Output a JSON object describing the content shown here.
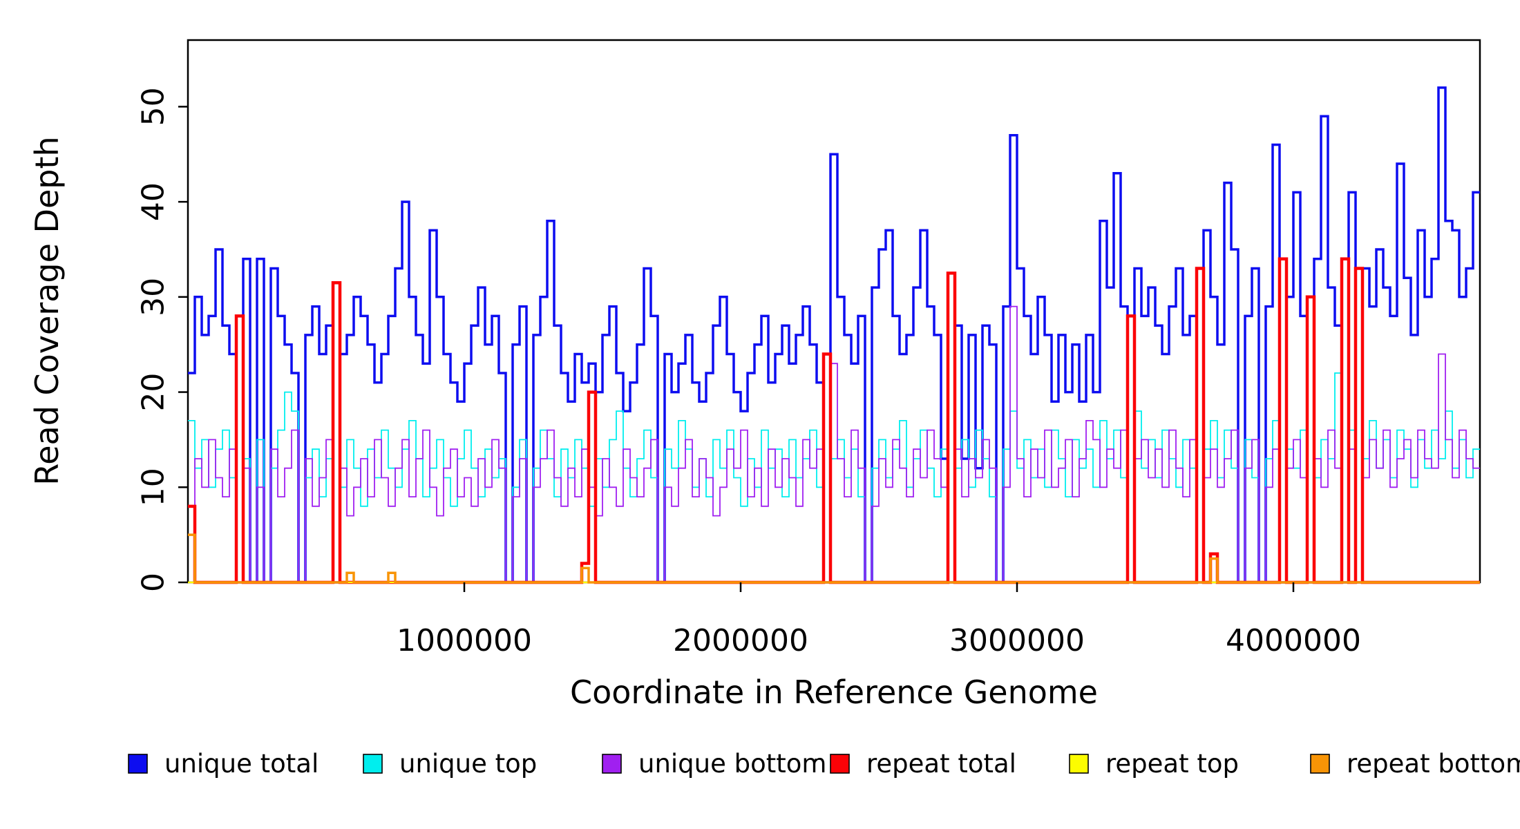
{
  "figure": {
    "y_axis": {
      "title": "Read Coverage Depth",
      "tick_labels": [
        "0",
        "10",
        "20",
        "30",
        "40",
        "50"
      ],
      "tick_values": [
        0,
        10,
        20,
        30,
        40,
        50
      ]
    },
    "x_axis": {
      "title": "Coordinate in Reference Genome",
      "tick_labels": [
        "1000000",
        "2000000",
        "3000000",
        "4000000"
      ],
      "tick_values": [
        1000000,
        2000000,
        3000000,
        4000000
      ]
    },
    "legend": [
      {
        "label": "unique total",
        "color": "#0d0df0"
      },
      {
        "label": "unique top",
        "color": "#00eeee"
      },
      {
        "label": "unique bottom",
        "color": "#a020f0"
      },
      {
        "label": "repeat total",
        "color": "#fb0207"
      },
      {
        "label": "repeat top",
        "color": "#fcfc00"
      },
      {
        "label": "repeat bottom",
        "color": "#f89406"
      }
    ],
    "stray_mark": "."
  },
  "chart_data": {
    "type": "line",
    "step_mode": "steps-post",
    "title": "",
    "xlabel": "Coordinate in Reference Genome",
    "ylabel": "Read Coverage Depth",
    "xlim": [
      0,
      4675000
    ],
    "ylim": [
      0,
      57
    ],
    "x_ticks": [
      1000000,
      2000000,
      3000000,
      4000000
    ],
    "y_ticks": [
      0,
      10,
      20,
      30,
      40,
      50
    ],
    "grid": false,
    "legend_position": "bottom",
    "x_start": 0,
    "x_step": 25000,
    "n_points": 187,
    "series": [
      {
        "name": "unique total",
        "color": "#0d0df0",
        "width": 3.5,
        "values": [
          22,
          30,
          26,
          28,
          35,
          27,
          24,
          0,
          34,
          0,
          34,
          0,
          33,
          28,
          25,
          22,
          0,
          26,
          29,
          24,
          27,
          0,
          24,
          26,
          30,
          28,
          25,
          21,
          24,
          28,
          33,
          40,
          30,
          26,
          23,
          37,
          30,
          24,
          21,
          19,
          23,
          27,
          31,
          25,
          28,
          22,
          0,
          25,
          29,
          0,
          26,
          30,
          38,
          27,
          22,
          19,
          24,
          21,
          23,
          20,
          26,
          29,
          22,
          18,
          21,
          25,
          33,
          28,
          0,
          24,
          20,
          23,
          26,
          21,
          19,
          22,
          27,
          30,
          24,
          20,
          18,
          22,
          25,
          28,
          21,
          24,
          27,
          23,
          26,
          29,
          25,
          21,
          0,
          45,
          30,
          26,
          23,
          28,
          0,
          31,
          35,
          37,
          28,
          24,
          26,
          31,
          37,
          29,
          26,
          13,
          0,
          27,
          13,
          26,
          12,
          27,
          25,
          0,
          29,
          47,
          33,
          28,
          24,
          30,
          26,
          19,
          26,
          20,
          25,
          19,
          26,
          20,
          38,
          31,
          43,
          29,
          0,
          33,
          28,
          31,
          27,
          24,
          29,
          33,
          26,
          28,
          0,
          37,
          30,
          25,
          42,
          35,
          0,
          28,
          33,
          0,
          29,
          46,
          0,
          30,
          41,
          28,
          0,
          34,
          49,
          31,
          27,
          0,
          41,
          0,
          33,
          29,
          35,
          31,
          28,
          44,
          32,
          26,
          37,
          30,
          34,
          52,
          38,
          37,
          30,
          33,
          41
        ]
      },
      {
        "name": "unique top",
        "color": "#00eeee",
        "width": 1.8,
        "values": [
          17,
          12,
          15,
          10,
          14,
          16,
          11,
          0,
          13,
          0,
          15,
          0,
          12,
          16,
          20,
          18,
          0,
          11,
          14,
          9,
          13,
          0,
          10,
          15,
          12,
          8,
          14,
          11,
          16,
          12,
          10,
          14,
          17,
          13,
          9,
          12,
          15,
          11,
          8,
          13,
          16,
          12,
          9,
          14,
          11,
          13,
          0,
          10,
          15,
          0,
          12,
          16,
          13,
          9,
          14,
          11,
          15,
          12,
          8,
          13,
          10,
          15,
          18,
          12,
          9,
          13,
          16,
          11,
          0,
          14,
          12,
          17,
          14,
          10,
          13,
          9,
          15,
          12,
          16,
          11,
          8,
          13,
          10,
          16,
          12,
          14,
          9,
          15,
          11,
          13,
          16,
          10,
          0,
          13,
          15,
          11,
          14,
          9,
          0,
          12,
          15,
          11,
          14,
          17,
          10,
          13,
          16,
          12,
          9,
          14,
          0,
          12,
          15,
          10,
          16,
          13,
          9,
          0,
          14,
          18,
          12,
          15,
          11,
          14,
          10,
          16,
          13,
          9,
          15,
          12,
          14,
          10,
          17,
          13,
          16,
          11,
          0,
          18,
          12,
          15,
          11,
          16,
          13,
          10,
          15,
          12,
          0,
          14,
          17,
          11,
          16,
          12,
          0,
          15,
          11,
          0,
          13,
          17,
          0,
          14,
          12,
          16,
          0,
          11,
          15,
          13,
          22,
          0,
          16,
          0,
          13,
          17,
          12,
          15,
          11,
          16,
          14,
          10,
          15,
          12,
          16,
          13,
          18,
          12,
          15,
          11,
          14
        ]
      },
      {
        "name": "unique bottom",
        "color": "#a020f0",
        "width": 1.8,
        "values": [
          8,
          13,
          10,
          15,
          11,
          9,
          14,
          0,
          12,
          0,
          10,
          0,
          14,
          9,
          12,
          16,
          0,
          13,
          8,
          11,
          15,
          0,
          12,
          7,
          10,
          13,
          9,
          15,
          11,
          8,
          12,
          15,
          9,
          13,
          16,
          10,
          7,
          12,
          14,
          9,
          11,
          8,
          13,
          10,
          15,
          12,
          0,
          9,
          13,
          0,
          10,
          13,
          16,
          11,
          8,
          12,
          9,
          14,
          10,
          7,
          13,
          10,
          8,
          14,
          11,
          9,
          12,
          15,
          0,
          10,
          8,
          12,
          15,
          9,
          13,
          11,
          7,
          10,
          14,
          12,
          16,
          9,
          12,
          8,
          14,
          10,
          13,
          11,
          8,
          15,
          12,
          14,
          0,
          23,
          13,
          9,
          16,
          12,
          0,
          8,
          13,
          10,
          15,
          12,
          9,
          14,
          11,
          16,
          13,
          10,
          0,
          14,
          9,
          13,
          11,
          15,
          12,
          0,
          10,
          29,
          13,
          9,
          14,
          11,
          16,
          10,
          12,
          15,
          9,
          13,
          17,
          15,
          10,
          14,
          12,
          16,
          0,
          13,
          15,
          11,
          14,
          10,
          16,
          12,
          9,
          15,
          0,
          11,
          14,
          10,
          13,
          16,
          0,
          12,
          15,
          0,
          10,
          14,
          0,
          12,
          15,
          11,
          0,
          13,
          10,
          16,
          12,
          0,
          14,
          0,
          11,
          15,
          12,
          16,
          10,
          13,
          15,
          11,
          16,
          13,
          12,
          24,
          15,
          11,
          16,
          13,
          12
        ]
      },
      {
        "name": "repeat total",
        "color": "#fb0207",
        "width": 4.5,
        "baseline": 0,
        "spikes": [
          [
            0,
            8
          ],
          [
            7,
            28
          ],
          [
            21,
            31.5
          ],
          [
            57,
            2
          ],
          [
            58,
            20
          ],
          [
            92,
            24
          ],
          [
            110,
            32.5
          ],
          [
            136,
            28
          ],
          [
            146,
            33
          ],
          [
            148,
            3
          ],
          [
            158,
            34
          ],
          [
            162,
            30
          ],
          [
            167,
            34
          ],
          [
            169,
            33
          ]
        ]
      },
      {
        "name": "repeat top",
        "color": "#fcfc00",
        "width": 2.5,
        "baseline": 0,
        "spikes": []
      },
      {
        "name": "repeat bottom",
        "color": "#f89406",
        "width": 3.5,
        "baseline": 0,
        "spikes": [
          [
            0,
            5
          ],
          [
            23,
            1
          ],
          [
            29,
            1
          ],
          [
            57,
            1.5
          ],
          [
            148,
            2.5
          ]
        ]
      }
    ]
  }
}
